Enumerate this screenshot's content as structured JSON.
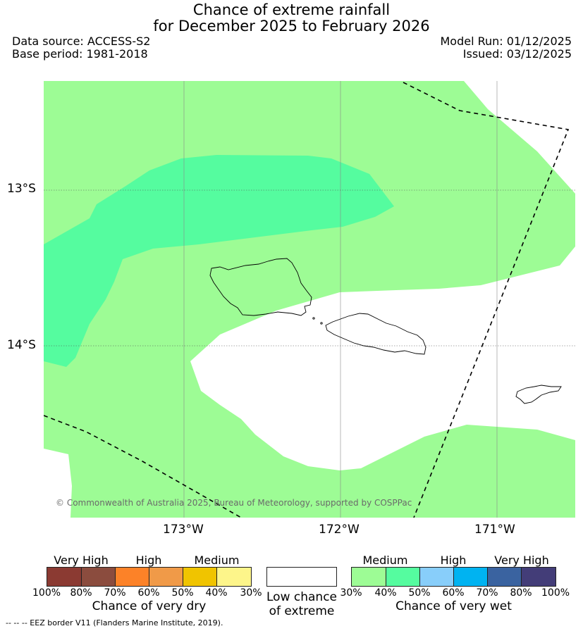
{
  "header": {
    "title_line1": "Chance of extreme rainfall",
    "title_line2": "for December 2025 to February 2026",
    "data_source": "Data source: ACCESS-S2",
    "base_period": "Base period: 1981-2018",
    "model_run": "Model Run: 01/12/2025",
    "issued": "Issued: 03/12/2025"
  },
  "map": {
    "lat_labels": [
      "13°S",
      "14°S"
    ],
    "lon_labels": [
      "173°W",
      "172°W",
      "171°W"
    ],
    "credit": "© Commonwealth of Australia 2025, Bureau of Meteorology, supported by COSPPac",
    "regions": [
      {
        "name": "Medium chance of very wet (30-40%)",
        "color": "#9dfc95"
      },
      {
        "name": "Medium chance of very wet (40-50%)",
        "color": "#55fc9f"
      },
      {
        "name": "Low chance of extreme",
        "color": "#ffffff"
      }
    ],
    "colors": {
      "eez_border": "#000000",
      "gridline": "#888888",
      "coastline": "#000000"
    }
  },
  "legend": {
    "dry": {
      "categories": [
        "Very High",
        "High",
        "Medium"
      ],
      "title": "Chance of very dry",
      "ticks": [
        "100%",
        "80%",
        "70%",
        "60%",
        "50%",
        "40%",
        "30%"
      ],
      "colors": [
        "#8b3a32",
        "#8b4c3e",
        "#fc8228",
        "#f09a48",
        "#f0c400",
        "#fdf58a"
      ]
    },
    "low": {
      "title_line1": "Low chance",
      "title_line2": "of extreme",
      "color": "#ffffff"
    },
    "wet": {
      "categories": [
        "Medium",
        "High",
        "Very High"
      ],
      "title": "Chance of very wet",
      "ticks": [
        "30%",
        "40%",
        "50%",
        "60%",
        "70%",
        "80%",
        "100%"
      ],
      "colors": [
        "#9dfc95",
        "#55fc9f",
        "#88cefa",
        "#00b3f1",
        "#3a63a0",
        "#433d78"
      ]
    }
  },
  "footnote": "--  --  -- EEZ border V11 (Flanders Marine Institute, 2019)."
}
